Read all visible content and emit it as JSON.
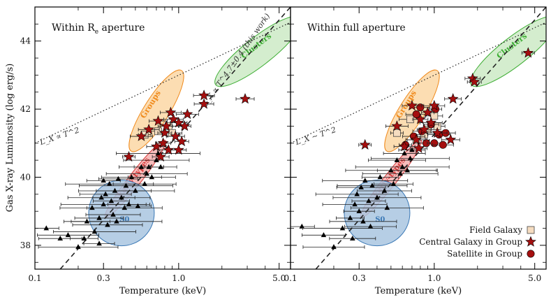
{
  "chart_data": [
    {
      "type": "scatter",
      "panel_label": "Within R",
      "panel_label_sub": "e",
      "panel_label_suffix": " aperture",
      "xlabel": "Temperature (keV)",
      "ylabel": "Gas X-ray Luminosity (log erg/s)",
      "xscale": "log",
      "xlim": [
        0.1,
        6.0
      ],
      "ylim": [
        37.3,
        45.0
      ],
      "xticks": [
        0.1,
        0.3,
        1.0,
        5.0
      ],
      "xtick_labels": [
        "0.1",
        "0.3",
        "1.0",
        "5.0"
      ],
      "yticks": [
        38,
        40,
        42,
        44
      ],
      "ytick_labels": [
        "38",
        "40",
        "42",
        "44"
      ],
      "regions": [
        {
          "name": "Clusters",
          "color": "#3fae35",
          "fill": "#cdeac6"
        },
        {
          "name": "Groups",
          "color": "#f08a1c",
          "fill": "#fbd7a4"
        },
        {
          "name": "Early-types",
          "color": "#d93b3b",
          "fill": "#f6b2b0"
        },
        {
          "name": "S0",
          "color": "#3a78b5",
          "fill": "#a9c5e0"
        }
      ],
      "lines": [
        {
          "label": "L_X ∝ T^2",
          "style": "dotted",
          "points": [
            [
              0.1,
              41.0
            ],
            [
              6.0,
              44.55
            ]
          ]
        },
        {
          "label": "L_X ∝ T^4.7±0.4 (this work)",
          "style": "dashed",
          "points": [
            [
              0.15,
              37.3
            ],
            [
              6.0,
              45.0
            ]
          ]
        }
      ],
      "series": [
        {
          "name": "Field Galaxy",
          "marker": "square",
          "color": "#f5dcc0",
          "points": [
            [
              0.58,
              41.25
            ],
            [
              0.72,
              41.35
            ],
            [
              0.85,
              41.5
            ],
            [
              0.9,
              41.3
            ]
          ]
        },
        {
          "name": "Central Galaxy in Group",
          "marker": "star",
          "color": "#a50f0f",
          "points": [
            [
              0.45,
              40.6
            ],
            [
              0.55,
              41.2
            ],
            [
              0.62,
              41.4
            ],
            [
              0.7,
              40.9
            ],
            [
              0.72,
              41.65
            ],
            [
              0.75,
              40.6
            ],
            [
              0.78,
              41.0
            ],
            [
              0.8,
              41.3
            ],
            [
              0.82,
              41.5
            ],
            [
              0.85,
              40.8
            ],
            [
              0.88,
              41.9
            ],
            [
              0.92,
              41.7
            ],
            [
              0.95,
              41.2
            ],
            [
              1.0,
              41.6
            ],
            [
              1.0,
              40.8
            ],
            [
              1.05,
              41.05
            ],
            [
              1.1,
              41.5
            ],
            [
              1.15,
              41.85
            ],
            [
              1.5,
              42.4
            ],
            [
              1.5,
              42.15
            ],
            [
              2.9,
              42.3
            ]
          ]
        },
        {
          "name": "Early-type",
          "marker": "triangle",
          "color": "#000000",
          "points": [
            [
              0.12,
              38.5
            ],
            [
              0.15,
              38.2
            ],
            [
              0.17,
              38.3
            ],
            [
              0.2,
              37.95
            ],
            [
              0.22,
              38.2
            ],
            [
              0.23,
              38.7
            ],
            [
              0.25,
              39.1
            ],
            [
              0.26,
              38.4
            ],
            [
              0.28,
              38.05
            ],
            [
              0.28,
              38.8
            ],
            [
              0.29,
              39.4
            ],
            [
              0.3,
              39.2
            ],
            [
              0.3,
              39.9
            ],
            [
              0.31,
              39.5
            ],
            [
              0.32,
              38.6
            ],
            [
              0.33,
              39.8
            ],
            [
              0.34,
              39.3
            ],
            [
              0.35,
              38.9
            ],
            [
              0.36,
              39.6
            ],
            [
              0.37,
              38.7
            ],
            [
              0.38,
              39.95
            ],
            [
              0.4,
              39.4
            ],
            [
              0.42,
              39.1
            ],
            [
              0.43,
              39.75
            ],
            [
              0.45,
              39.2
            ],
            [
              0.47,
              40.0
            ],
            [
              0.5,
              39.6
            ],
            [
              0.52,
              39.15
            ],
            [
              0.55,
              40.3
            ],
            [
              0.58,
              39.8
            ],
            [
              0.6,
              40.1
            ],
            [
              0.62,
              40.3
            ],
            [
              0.65,
              40.0
            ],
            [
              0.7,
              40.5
            ],
            [
              0.72,
              40.7
            ],
            [
              0.75,
              40.3
            ]
          ]
        }
      ]
    },
    {
      "type": "scatter",
      "panel_label": "Within full aperture",
      "xlabel": "Temperature (keV)",
      "xscale": "log",
      "xlim": [
        0.1,
        6.0
      ],
      "ylim": [
        37.3,
        45.0
      ],
      "xticks": [
        0.1,
        0.3,
        1.0,
        5.0
      ],
      "xtick_labels": [
        "0.1",
        "0.3",
        "1.0",
        "5.0"
      ],
      "regions": [
        {
          "name": "Clusters",
          "color": "#3fae35",
          "fill": "#cdeac6"
        },
        {
          "name": "Groups",
          "color": "#f08a1c",
          "fill": "#fbd7a4"
        },
        {
          "name": "Early-types",
          "color": "#d93b3b",
          "fill": "#f6b2b0"
        },
        {
          "name": "S0",
          "color": "#3a78b5",
          "fill": "#a9c5e0"
        }
      ],
      "lines": [
        {
          "label": "L_X ∼ T^2",
          "style": "dotted",
          "points": [
            [
              0.1,
              41.0
            ],
            [
              6.0,
              44.55
            ]
          ]
        },
        {
          "label": "",
          "style": "dashed",
          "points": [
            [
              0.15,
              37.3
            ],
            [
              6.0,
              45.0
            ]
          ]
        }
      ],
      "legend": {
        "placement": "bottom-right",
        "entries": [
          "Field Galaxy",
          "Central Galaxy in Group",
          "Satellite in Group"
        ]
      },
      "series": [
        {
          "name": "Field Galaxy",
          "marker": "square",
          "color": "#f5dcc0",
          "points": [
            [
              0.55,
              41.3
            ],
            [
              0.68,
              41.7
            ],
            [
              0.75,
              41.1
            ],
            [
              0.85,
              41.25
            ],
            [
              0.9,
              41.4
            ],
            [
              1.0,
              41.8
            ],
            [
              1.05,
              41.5
            ]
          ]
        },
        {
          "name": "Central Galaxy in Group",
          "marker": "star",
          "color": "#a50f0f",
          "points": [
            [
              0.33,
              40.95
            ],
            [
              0.55,
              41.5
            ],
            [
              0.62,
              40.9
            ],
            [
              0.7,
              42.1
            ],
            [
              0.75,
              41.1
            ],
            [
              0.78,
              40.85
            ],
            [
              0.8,
              41.7
            ],
            [
              0.85,
              41.4
            ],
            [
              0.9,
              41.9
            ],
            [
              0.95,
              41.6
            ],
            [
              1.0,
              42.1
            ],
            [
              1.05,
              41.3
            ],
            [
              1.3,
              41.1
            ],
            [
              1.35,
              42.3
            ],
            [
              1.85,
              42.9
            ],
            [
              1.9,
              42.8
            ],
            [
              4.5,
              43.65
            ]
          ]
        },
        {
          "name": "Satellite in Group",
          "marker": "circle",
          "color": "#a50f0f",
          "points": [
            [
              0.63,
              40.95
            ],
            [
              0.72,
              41.2
            ],
            [
              0.75,
              41.85
            ],
            [
              0.8,
              42.05
            ],
            [
              0.82,
              41.35
            ],
            [
              0.88,
              41.0
            ],
            [
              0.95,
              41.55
            ],
            [
              1.0,
              41.0
            ],
            [
              1.02,
              42.0
            ],
            [
              1.08,
              41.25
            ],
            [
              1.15,
              40.95
            ],
            [
              1.2,
              41.3
            ]
          ]
        },
        {
          "name": "Early-type",
          "marker": "triangle",
          "color": "#000000",
          "points": [
            [
              0.12,
              38.55
            ],
            [
              0.17,
              38.3
            ],
            [
              0.2,
              37.95
            ],
            [
              0.23,
              38.5
            ],
            [
              0.26,
              38.8
            ],
            [
              0.27,
              38.2
            ],
            [
              0.28,
              39.2
            ],
            [
              0.29,
              39.5
            ],
            [
              0.3,
              39.0
            ],
            [
              0.31,
              39.7
            ],
            [
              0.32,
              38.7
            ],
            [
              0.33,
              39.9
            ],
            [
              0.35,
              39.3
            ],
            [
              0.36,
              38.55
            ],
            [
              0.37,
              39.75
            ],
            [
              0.4,
              39.4
            ],
            [
              0.42,
              40.0
            ],
            [
              0.45,
              39.6
            ],
            [
              0.47,
              39.1
            ],
            [
              0.5,
              40.2
            ],
            [
              0.52,
              39.8
            ],
            [
              0.55,
              40.5
            ],
            [
              0.58,
              40.1
            ],
            [
              0.6,
              40.3
            ],
            [
              0.62,
              40.7
            ],
            [
              0.65,
              40.2
            ],
            [
              0.68,
              40.55
            ],
            [
              0.7,
              40.8
            ]
          ]
        }
      ]
    }
  ]
}
